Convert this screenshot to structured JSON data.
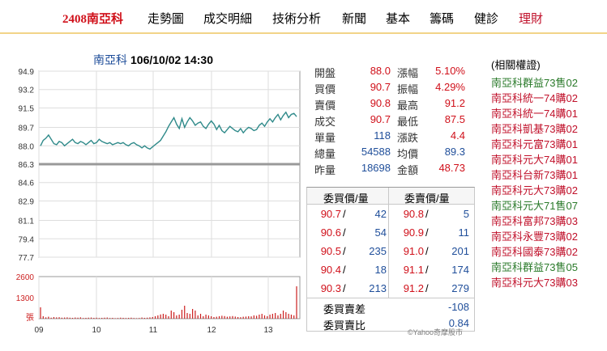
{
  "nav": {
    "stock": "2408南亞科",
    "items": [
      "走勢圖",
      "成交明細",
      "技術分析",
      "新聞",
      "基本",
      "籌碼",
      "健診",
      "理財"
    ]
  },
  "chart": {
    "name": "南亞科",
    "datetime": "106/10/02 14:30"
  },
  "chart_data": {
    "type": "line",
    "y_ticks": [
      "94.9",
      "93.2",
      "91.5",
      "89.7",
      "88.0",
      "86.3",
      "84.6",
      "82.9",
      "81.1",
      "79.4",
      "77.7"
    ],
    "ylim": [
      77.7,
      94.9
    ],
    "reference_price": 86.3,
    "x_ticks": [
      "09",
      "10",
      "11",
      "12",
      "13"
    ],
    "volume_ticks": [
      "2600",
      "1300",
      "張"
    ],
    "volume_max": 2600,
    "price": [
      88.0,
      88.5,
      88.7,
      89.0,
      88.6,
      88.2,
      88.1,
      88.4,
      88.3,
      88.0,
      88.2,
      88.4,
      88.6,
      88.3,
      88.2,
      88.4,
      88.3,
      88.1,
      88.3,
      88.5,
      88.2,
      88.3,
      88.6,
      88.4,
      88.3,
      88.2,
      88.3,
      88.1,
      88.2,
      88.3,
      88.2,
      88.3,
      88.1,
      88.0,
      88.2,
      88.3,
      88.1,
      88.0,
      87.8,
      88.0,
      87.8,
      87.7,
      87.9,
      88.1,
      88.3,
      88.5,
      88.9,
      89.3,
      89.8,
      90.2,
      90.6,
      90.0,
      89.6,
      90.5,
      89.7,
      90.2,
      90.6,
      90.3,
      89.9,
      90.1,
      90.2,
      89.8,
      89.6,
      90.0,
      90.3,
      90.0,
      89.5,
      89.9,
      89.4,
      89.2,
      89.5,
      89.8,
      89.6,
      89.4,
      89.3,
      89.6,
      89.2,
      89.5,
      89.7,
      89.6,
      89.4,
      89.5,
      89.9,
      90.1,
      89.8,
      90.2,
      90.5,
      90.2,
      90.6,
      90.9,
      90.4,
      90.8,
      91.1,
      90.6,
      90.9,
      91.0,
      90.7
    ],
    "volume": [
      700,
      150,
      80,
      120,
      60,
      100,
      80,
      90,
      60,
      70,
      80,
      60,
      50,
      70,
      60,
      80,
      40,
      50,
      60,
      70,
      50,
      60,
      40,
      50,
      60,
      70,
      40,
      50,
      30,
      40,
      60,
      50,
      40,
      50,
      60,
      40,
      30,
      40,
      70,
      50,
      60,
      80,
      100,
      150,
      200,
      260,
      300,
      250,
      150,
      500,
      400,
      200,
      250,
      550,
      800,
      350,
      300,
      600,
      500,
      200,
      300,
      150,
      250,
      200,
      150,
      100,
      120,
      150,
      180,
      160,
      120,
      140,
      160,
      130,
      100,
      90,
      120,
      130,
      150,
      140,
      200,
      180,
      250,
      300,
      200,
      150,
      250,
      300,
      350,
      200,
      300,
      500,
      400,
      300,
      250,
      200,
      2000
    ]
  },
  "quote": {
    "rows": [
      {
        "l1": "開盤",
        "v1": "88.0",
        "l2": "漲幅",
        "v2": "5.10%"
      },
      {
        "l1": "買價",
        "v1": "90.7",
        "l2": "振幅",
        "v2": "4.29%"
      },
      {
        "l1": "賣價",
        "v1": "90.8",
        "l2": "最高",
        "v2": "91.2"
      },
      {
        "l1": "成交",
        "v1": "90.7",
        "l2": "最低",
        "v2": "87.5"
      },
      {
        "l1": "單量",
        "v1": "118",
        "l2": "漲跌",
        "v2": "4.4"
      },
      {
        "l1": "總量",
        "v1": "54588",
        "l2": "均價",
        "v2": "89.3"
      },
      {
        "l1": "昨量",
        "v1": "18698",
        "l2": "金額",
        "v2": "48.73"
      }
    ]
  },
  "orderbook": {
    "bid_header": "委買價/量",
    "ask_header": "委賣價/量",
    "rows": [
      {
        "bp": "90.7",
        "bq": "42",
        "ap": "90.8",
        "aq": "5"
      },
      {
        "bp": "90.6",
        "bq": "54",
        "ap": "90.9",
        "aq": "11"
      },
      {
        "bp": "90.5",
        "bq": "235",
        "ap": "91.0",
        "aq": "201"
      },
      {
        "bp": "90.4",
        "bq": "18",
        "ap": "91.1",
        "aq": "174"
      },
      {
        "bp": "90.3",
        "bq": "213",
        "ap": "91.2",
        "aq": "279"
      }
    ],
    "diff_label": "委買賣差",
    "diff_value": "-108",
    "ratio_label": "委買賣比",
    "ratio_value": "0.84"
  },
  "copyright": "©Yahoo奇摩股市",
  "warrants": {
    "header": "(相關權證)",
    "items": [
      {
        "name": "南亞科群益73售02",
        "color": "#2a7a2a"
      },
      {
        "name": "南亞科統一74購02",
        "color": "#c0102a"
      },
      {
        "name": "南亞科統一74購01",
        "color": "#c0102a"
      },
      {
        "name": "南亞科凱基73購02",
        "color": "#c0102a"
      },
      {
        "name": "南亞科元富73購01",
        "color": "#c0102a"
      },
      {
        "name": "南亞科元大74購01",
        "color": "#c0102a"
      },
      {
        "name": "南亞科台新73購01",
        "color": "#c0102a"
      },
      {
        "name": "南亞科元大73購02",
        "color": "#c0102a"
      },
      {
        "name": "南亞科元大71售07",
        "color": "#2a7a2a"
      },
      {
        "name": "南亞科富邦73購03",
        "color": "#c0102a"
      },
      {
        "name": "南亞科永豐73購02",
        "color": "#c0102a"
      },
      {
        "name": "南亞科國泰73購02",
        "color": "#c0102a"
      },
      {
        "name": "南亞科群益73售05",
        "color": "#2a7a2a"
      },
      {
        "name": "南亞科元大73購03",
        "color": "#c0102a"
      }
    ]
  }
}
